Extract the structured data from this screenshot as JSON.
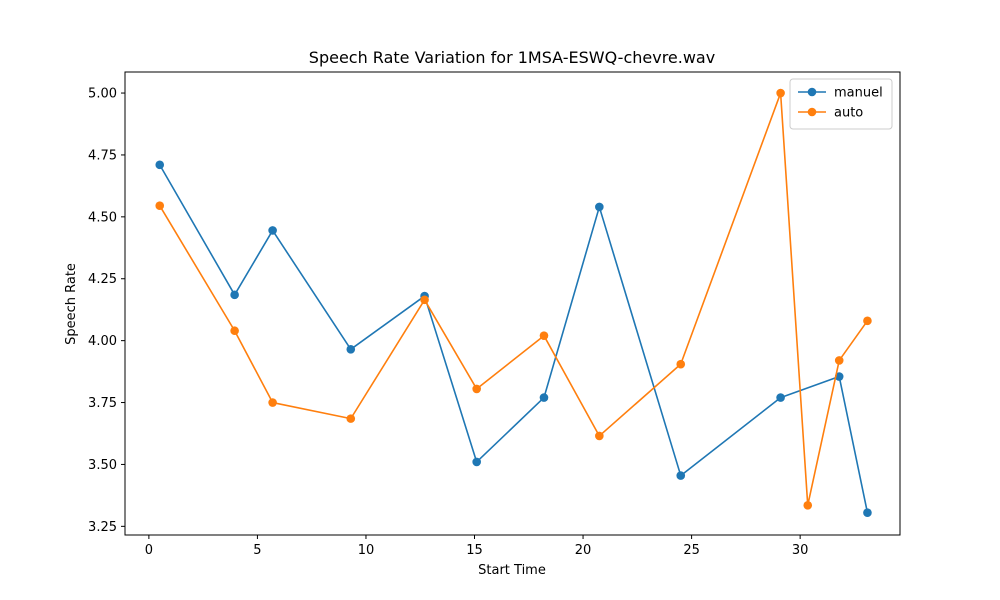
{
  "chart_data": {
    "type": "line",
    "title": "Speech Rate Variation for 1MSA-ESWQ-chevre.wav",
    "xlabel": "Start Time",
    "ylabel": "Speech Rate",
    "xlim": [
      -1.1,
      34.6
    ],
    "ylim": [
      3.215,
      5.085
    ],
    "xticks": [
      0,
      5,
      10,
      15,
      20,
      25,
      30
    ],
    "yticks": [
      3.25,
      3.5,
      3.75,
      4.0,
      4.25,
      4.5,
      4.75,
      5.0
    ],
    "ytick_labels": [
      "3.25",
      "3.50",
      "3.75",
      "4.00",
      "4.25",
      "4.50",
      "4.75",
      "5.00"
    ],
    "legend_position": "top-right",
    "grid": false,
    "series": [
      {
        "name": "manuel",
        "color": "#1f77b4",
        "x": [
          0.5,
          3.95,
          5.7,
          9.3,
          12.7,
          15.1,
          18.2,
          20.75,
          24.5,
          29.1,
          31.8,
          33.1
        ],
        "y": [
          4.71,
          4.185,
          4.445,
          3.965,
          4.18,
          3.51,
          3.77,
          4.54,
          3.455,
          3.77,
          3.855,
          3.305
        ]
      },
      {
        "name": "auto",
        "color": "#ff7f0e",
        "x": [
          0.5,
          3.95,
          5.7,
          9.3,
          12.7,
          15.1,
          18.2,
          20.75,
          24.5,
          29.1,
          30.35,
          31.8,
          33.1
        ],
        "y": [
          4.545,
          4.04,
          3.75,
          3.685,
          4.165,
          3.805,
          4.02,
          3.615,
          3.905,
          5.0,
          3.335,
          3.92,
          4.08
        ]
      }
    ]
  }
}
